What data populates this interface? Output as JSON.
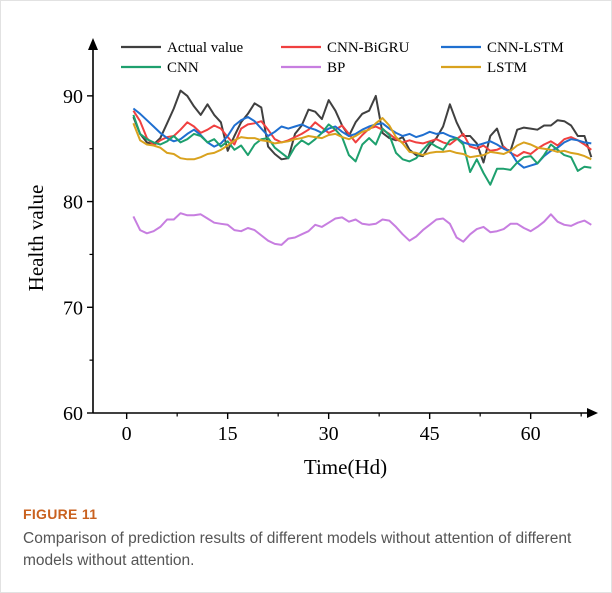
{
  "figure": {
    "label": "FIGURE 11",
    "caption": "Comparison of prediction results of different models without attention of different models without attention."
  },
  "chart_data": {
    "type": "line",
    "title": "",
    "xlabel": "Time(Hd)",
    "ylabel": "Health value",
    "xlim": [
      -5,
      70
    ],
    "ylim": [
      60,
      95
    ],
    "xticks": [
      0,
      15,
      30,
      45,
      60
    ],
    "yticks": [
      60,
      70,
      80,
      90
    ],
    "xtick_labels": [
      "0",
      "15",
      "30",
      "45",
      "60"
    ],
    "ytick_labels": [
      "60",
      "70",
      "80",
      "90"
    ],
    "legend_position": "top",
    "x": [
      1,
      2,
      3,
      4,
      5,
      6,
      7,
      8,
      9,
      10,
      11,
      12,
      13,
      14,
      15,
      16,
      17,
      18,
      19,
      20,
      21,
      22,
      23,
      24,
      25,
      26,
      27,
      28,
      29,
      30,
      31,
      32,
      33,
      34,
      35,
      36,
      37,
      38,
      39,
      40,
      41,
      42,
      43,
      44,
      45,
      46,
      47,
      48,
      49,
      50,
      51,
      52,
      53,
      54,
      55,
      56,
      57,
      58,
      59,
      60,
      61,
      62,
      63,
      64,
      65,
      66,
      67,
      68,
      69
    ],
    "series": [
      {
        "name": "Actual value",
        "color": "#404040",
        "values": [
          88.0,
          86.4,
          85.6,
          85.4,
          86.0,
          87.4,
          88.8,
          90.5,
          90.0,
          89.0,
          88.2,
          89.2,
          88.2,
          87.5,
          84.8,
          86.2,
          87.5,
          88.3,
          89.3,
          88.9,
          85.2,
          84.5,
          84.0,
          84.1,
          86.4,
          87.2,
          88.7,
          88.5,
          87.8,
          89.6,
          88.6,
          87.2,
          86.2,
          87.5,
          88.3,
          88.6,
          90.0,
          86.5,
          86.0,
          85.8,
          86.1,
          84.9,
          84.4,
          84.3,
          85.3,
          86.0,
          87.1,
          89.2,
          87.5,
          86.2,
          86.2,
          85.5,
          83.7,
          86.2,
          86.9,
          85.0,
          84.8,
          86.8,
          87.0,
          86.9,
          86.8,
          87.2,
          87.2,
          87.7,
          87.6,
          87.2,
          86.2,
          86.2,
          84.2
        ]
      },
      {
        "name": "CNN-BiGRU",
        "color": "#f04040",
        "values": [
          88.6,
          87.6,
          86.0,
          85.3,
          85.8,
          86.1,
          86.2,
          86.8,
          87.5,
          87.1,
          86.5,
          86.8,
          87.2,
          86.9,
          86.1,
          85.4,
          86.9,
          87.3,
          87.4,
          87.6,
          86.8,
          85.9,
          85.6,
          85.8,
          86.1,
          86.4,
          86.8,
          87.5,
          87.0,
          86.5,
          86.8,
          87.2,
          86.4,
          85.6,
          86.3,
          86.9,
          87.1,
          86.8,
          86.4,
          85.9,
          85.6,
          85.8,
          85.6,
          85.5,
          85.7,
          85.9,
          85.6,
          85.4,
          85.9,
          86.4,
          85.2,
          85.0,
          85.3,
          84.8,
          84.9,
          85.2,
          84.6,
          84.3,
          84.7,
          84.5,
          85.0,
          85.4,
          85.7,
          85.3,
          85.9,
          86.1,
          85.8,
          85.4,
          84.9
        ]
      },
      {
        "name": "CNN-LSTM",
        "color": "#1f6fd0",
        "values": [
          88.8,
          88.3,
          87.7,
          87.1,
          86.5,
          86.0,
          85.7,
          85.9,
          86.4,
          86.8,
          86.3,
          85.6,
          85.2,
          85.5,
          86.2,
          87.2,
          87.7,
          88.0,
          87.6,
          86.9,
          86.2,
          86.6,
          87.1,
          86.9,
          87.1,
          87.3,
          87.0,
          86.8,
          86.5,
          86.9,
          87.1,
          86.6,
          86.2,
          86.4,
          86.8,
          87.1,
          87.3,
          87.4,
          86.9,
          86.5,
          86.2,
          86.4,
          86.1,
          86.3,
          86.6,
          86.4,
          86.5,
          86.2,
          86.0,
          85.6,
          85.4,
          85.3,
          85.5,
          85.7,
          85.4,
          85.0,
          84.7,
          83.7,
          83.2,
          83.4,
          83.6,
          84.3,
          84.8,
          85.1,
          85.6,
          85.9,
          85.8,
          85.6,
          85.5
        ]
      },
      {
        "name": "CNN",
        "color": "#1ea06e",
        "values": [
          88.2,
          86.4,
          85.9,
          85.6,
          85.4,
          85.7,
          86.2,
          85.6,
          85.9,
          86.4,
          86.2,
          85.6,
          85.9,
          85.2,
          85.7,
          84.9,
          85.3,
          84.4,
          85.4,
          85.9,
          86.0,
          85.1,
          84.6,
          84.1,
          85.2,
          85.8,
          85.4,
          85.9,
          86.5,
          87.3,
          86.8,
          86.1,
          84.4,
          83.8,
          85.4,
          86.0,
          85.4,
          86.9,
          86.3,
          84.6,
          84.0,
          83.8,
          84.1,
          84.9,
          85.6,
          85.2,
          84.9,
          85.8,
          86.0,
          85.4,
          82.8,
          84.0,
          82.7,
          81.6,
          83.1,
          83.1,
          83.0,
          83.7,
          84.2,
          84.3,
          83.6,
          84.4,
          85.4,
          84.9,
          84.4,
          84.2,
          82.9,
          83.3,
          83.2
        ]
      },
      {
        "name": "BP",
        "color": "#c77ee0",
        "values": [
          78.6,
          77.3,
          77.0,
          77.2,
          77.6,
          78.3,
          78.3,
          78.9,
          78.7,
          78.7,
          78.8,
          78.4,
          78.0,
          77.9,
          77.8,
          77.3,
          77.2,
          77.5,
          77.3,
          76.8,
          76.3,
          76.0,
          75.9,
          76.5,
          76.6,
          76.9,
          77.2,
          77.8,
          77.6,
          78.0,
          78.4,
          78.5,
          78.1,
          78.3,
          77.9,
          77.8,
          77.9,
          78.3,
          78.2,
          77.6,
          76.9,
          76.3,
          76.7,
          77.3,
          77.8,
          78.3,
          78.4,
          77.9,
          76.6,
          76.2,
          76.9,
          77.4,
          77.6,
          77.1,
          77.2,
          77.4,
          77.9,
          77.9,
          77.5,
          77.2,
          77.6,
          78.1,
          78.8,
          78.1,
          77.8,
          77.7,
          78.0,
          78.2,
          77.8
        ]
      },
      {
        "name": "LSTM",
        "color": "#d9a21e",
        "values": [
          87.4,
          85.8,
          85.4,
          85.3,
          85.1,
          84.6,
          84.5,
          84.1,
          84.0,
          84.0,
          84.2,
          84.5,
          84.6,
          84.9,
          85.3,
          85.8,
          86.1,
          86.0,
          86.0,
          85.8,
          85.7,
          85.5,
          85.6,
          85.7,
          85.9,
          86.0,
          86.2,
          86.1,
          86.0,
          86.3,
          86.4,
          86.1,
          85.9,
          86.2,
          86.6,
          86.8,
          87.4,
          87.9,
          87.2,
          86.1,
          85.5,
          84.7,
          84.6,
          84.4,
          84.6,
          84.7,
          84.7,
          84.8,
          84.6,
          84.5,
          84.2,
          84.3,
          84.4,
          84.7,
          84.6,
          84.5,
          84.8,
          85.3,
          85.6,
          85.4,
          85.1,
          85.0,
          84.9,
          84.7,
          84.8,
          84.6,
          84.5,
          84.3,
          84.0
        ]
      }
    ]
  }
}
